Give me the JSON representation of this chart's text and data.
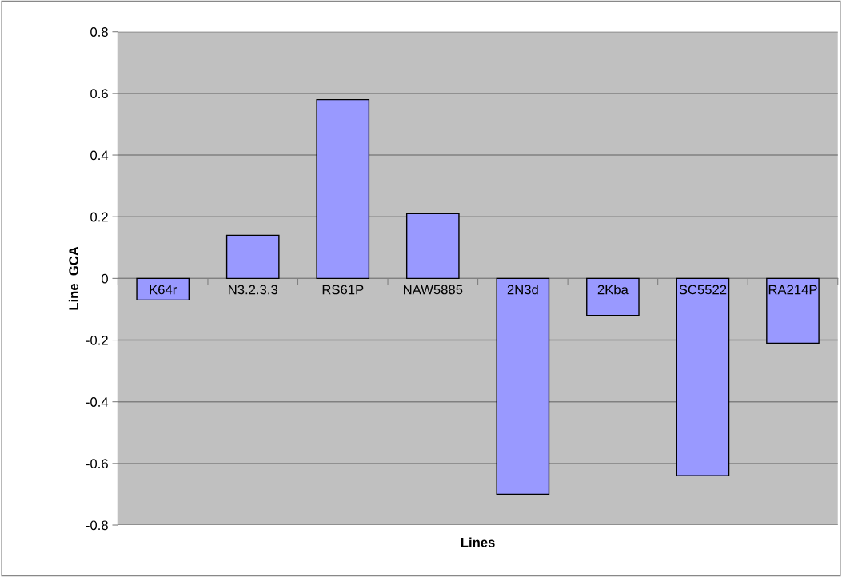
{
  "chart_data": {
    "type": "bar",
    "xlabel": "Lines",
    "ylabel": "Line  GCA",
    "categories": [
      "K64r",
      "N3.2.3.3",
      "RS61P",
      "NAW5885",
      "2N3d",
      "2Kba",
      "SC5522",
      "RA214P"
    ],
    "values": [
      -0.07,
      0.14,
      0.58,
      0.21,
      -0.7,
      -0.12,
      -0.64,
      -0.21
    ],
    "color": "#9999ff",
    "ylim": [
      -0.8,
      0.8
    ],
    "yticks": [
      -0.8,
      -0.6,
      -0.4,
      -0.2,
      0,
      0.2,
      0.4,
      0.6,
      0.8
    ],
    "grid": "y",
    "legend": false
  }
}
